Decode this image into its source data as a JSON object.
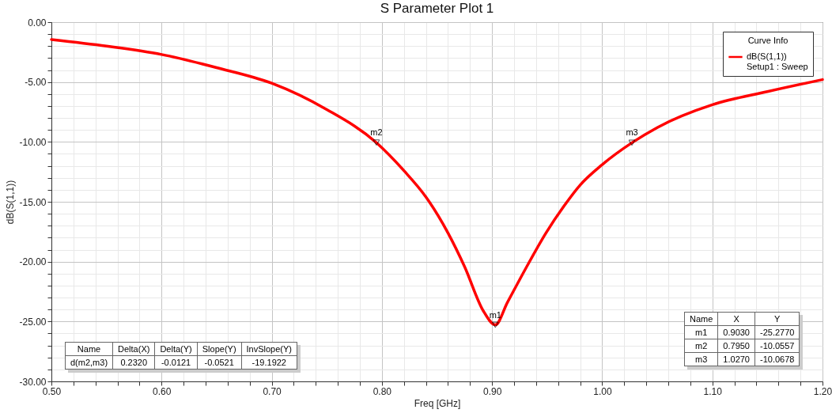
{
  "chart_data": {
    "type": "line",
    "title": "S Parameter Plot 1",
    "xlabel": "Freq [GHz]",
    "ylabel": "dB(S(1,1))",
    "legend_title": "Curve Info",
    "legend": "top right",
    "grid": true,
    "line_style": "solid",
    "marker": "none",
    "x": [
      0.5,
      0.55,
      0.6,
      0.65,
      0.7,
      0.75,
      0.795,
      0.82,
      0.84,
      0.86,
      0.875,
      0.892,
      0.903,
      0.914,
      0.931,
      0.949,
      0.965,
      0.98,
      1.0,
      1.027,
      1.05,
      1.1,
      1.15,
      1.2
    ],
    "series": [
      {
        "name": "dB(S(1,1))\nSetup1 : Sweep",
        "color": "#ff0000",
        "values": [
          -1.45,
          -2.0,
          -2.7,
          -3.8,
          -5.1,
          -7.3,
          -10.06,
          -12.4,
          -14.6,
          -17.6,
          -20.4,
          -24.1,
          -25.28,
          -23.4,
          -20.5,
          -17.6,
          -15.4,
          -13.6,
          -11.9,
          -10.07,
          -8.8,
          -6.9,
          -5.8,
          -4.8
        ]
      }
    ],
    "xlim": [
      0.5,
      1.2
    ],
    "xticks": [
      {
        "value": 0.5,
        "label": "0.50"
      },
      {
        "value": 0.52,
        "label": null
      },
      {
        "value": 0.54,
        "label": null
      },
      {
        "value": 0.56,
        "label": null
      },
      {
        "value": 0.58,
        "label": null
      },
      {
        "value": 0.6,
        "label": "0.60"
      },
      {
        "value": 0.62,
        "label": null
      },
      {
        "value": 0.64,
        "label": null
      },
      {
        "value": 0.66,
        "label": null
      },
      {
        "value": 0.68,
        "label": null
      },
      {
        "value": 0.7,
        "label": "0.70"
      },
      {
        "value": 0.72,
        "label": null
      },
      {
        "value": 0.74,
        "label": null
      },
      {
        "value": 0.76,
        "label": null
      },
      {
        "value": 0.78,
        "label": null
      },
      {
        "value": 0.8,
        "label": "0.80"
      },
      {
        "value": 0.82,
        "label": null
      },
      {
        "value": 0.84,
        "label": null
      },
      {
        "value": 0.86,
        "label": null
      },
      {
        "value": 0.88,
        "label": null
      },
      {
        "value": 0.9,
        "label": "0.90"
      },
      {
        "value": 0.92,
        "label": null
      },
      {
        "value": 0.94,
        "label": null
      },
      {
        "value": 0.96,
        "label": null
      },
      {
        "value": 0.98,
        "label": null
      },
      {
        "value": 1.0,
        "label": "1.00"
      },
      {
        "value": 1.02,
        "label": null
      },
      {
        "value": 1.04,
        "label": null
      },
      {
        "value": 1.06,
        "label": null
      },
      {
        "value": 1.08,
        "label": null
      },
      {
        "value": 1.1,
        "label": "1.10"
      },
      {
        "value": 1.12,
        "label": null
      },
      {
        "value": 1.14,
        "label": null
      },
      {
        "value": 1.16,
        "label": null
      },
      {
        "value": 1.18,
        "label": null
      },
      {
        "value": 1.2,
        "label": "1.20"
      }
    ],
    "ylim": [
      -30,
      0
    ],
    "yticks": [
      {
        "value": 0,
        "label": "0.00"
      },
      {
        "value": -1,
        "label": null
      },
      {
        "value": -2,
        "label": null
      },
      {
        "value": -3,
        "label": null
      },
      {
        "value": -4,
        "label": null
      },
      {
        "value": -5,
        "label": "-5.00"
      },
      {
        "value": -6,
        "label": null
      },
      {
        "value": -7,
        "label": null
      },
      {
        "value": -8,
        "label": null
      },
      {
        "value": -9,
        "label": null
      },
      {
        "value": -10,
        "label": "-10.00"
      },
      {
        "value": -11,
        "label": null
      },
      {
        "value": -12,
        "label": null
      },
      {
        "value": -13,
        "label": null
      },
      {
        "value": -14,
        "label": null
      },
      {
        "value": -15,
        "label": "-15.00"
      },
      {
        "value": -16,
        "label": null
      },
      {
        "value": -17,
        "label": null
      },
      {
        "value": -18,
        "label": null
      },
      {
        "value": -19,
        "label": null
      },
      {
        "value": -20,
        "label": "-20.00"
      },
      {
        "value": -21,
        "label": null
      },
      {
        "value": -22,
        "label": null
      },
      {
        "value": -23,
        "label": null
      },
      {
        "value": -24,
        "label": null
      },
      {
        "value": -25,
        "label": "-25.00"
      },
      {
        "value": -26,
        "label": null
      },
      {
        "value": -27,
        "label": null
      },
      {
        "value": -28,
        "label": null
      },
      {
        "value": -29,
        "label": null
      },
      {
        "value": -30,
        "label": "-30.00"
      }
    ],
    "annotations": [
      {
        "text": "m1",
        "x": 0.903,
        "y": -25.277
      },
      {
        "text": "m2",
        "x": 0.795,
        "y": -10.0557
      },
      {
        "text": "m3",
        "x": 1.027,
        "y": -10.0678
      },
      "Name\tDelta(X)\tDelta(Y)\tSlope(Y)\tInvSlope(Y)",
      "d(m2,m3)\t0.2320\t-0.0121\t-0.0521\t-19.1922",
      "Name\tX\tY",
      "m1\t0.9030\t-25.2770",
      "m2\t0.7950\t-10.0557",
      "m3\t1.0270\t-10.0678"
    ]
  }
}
